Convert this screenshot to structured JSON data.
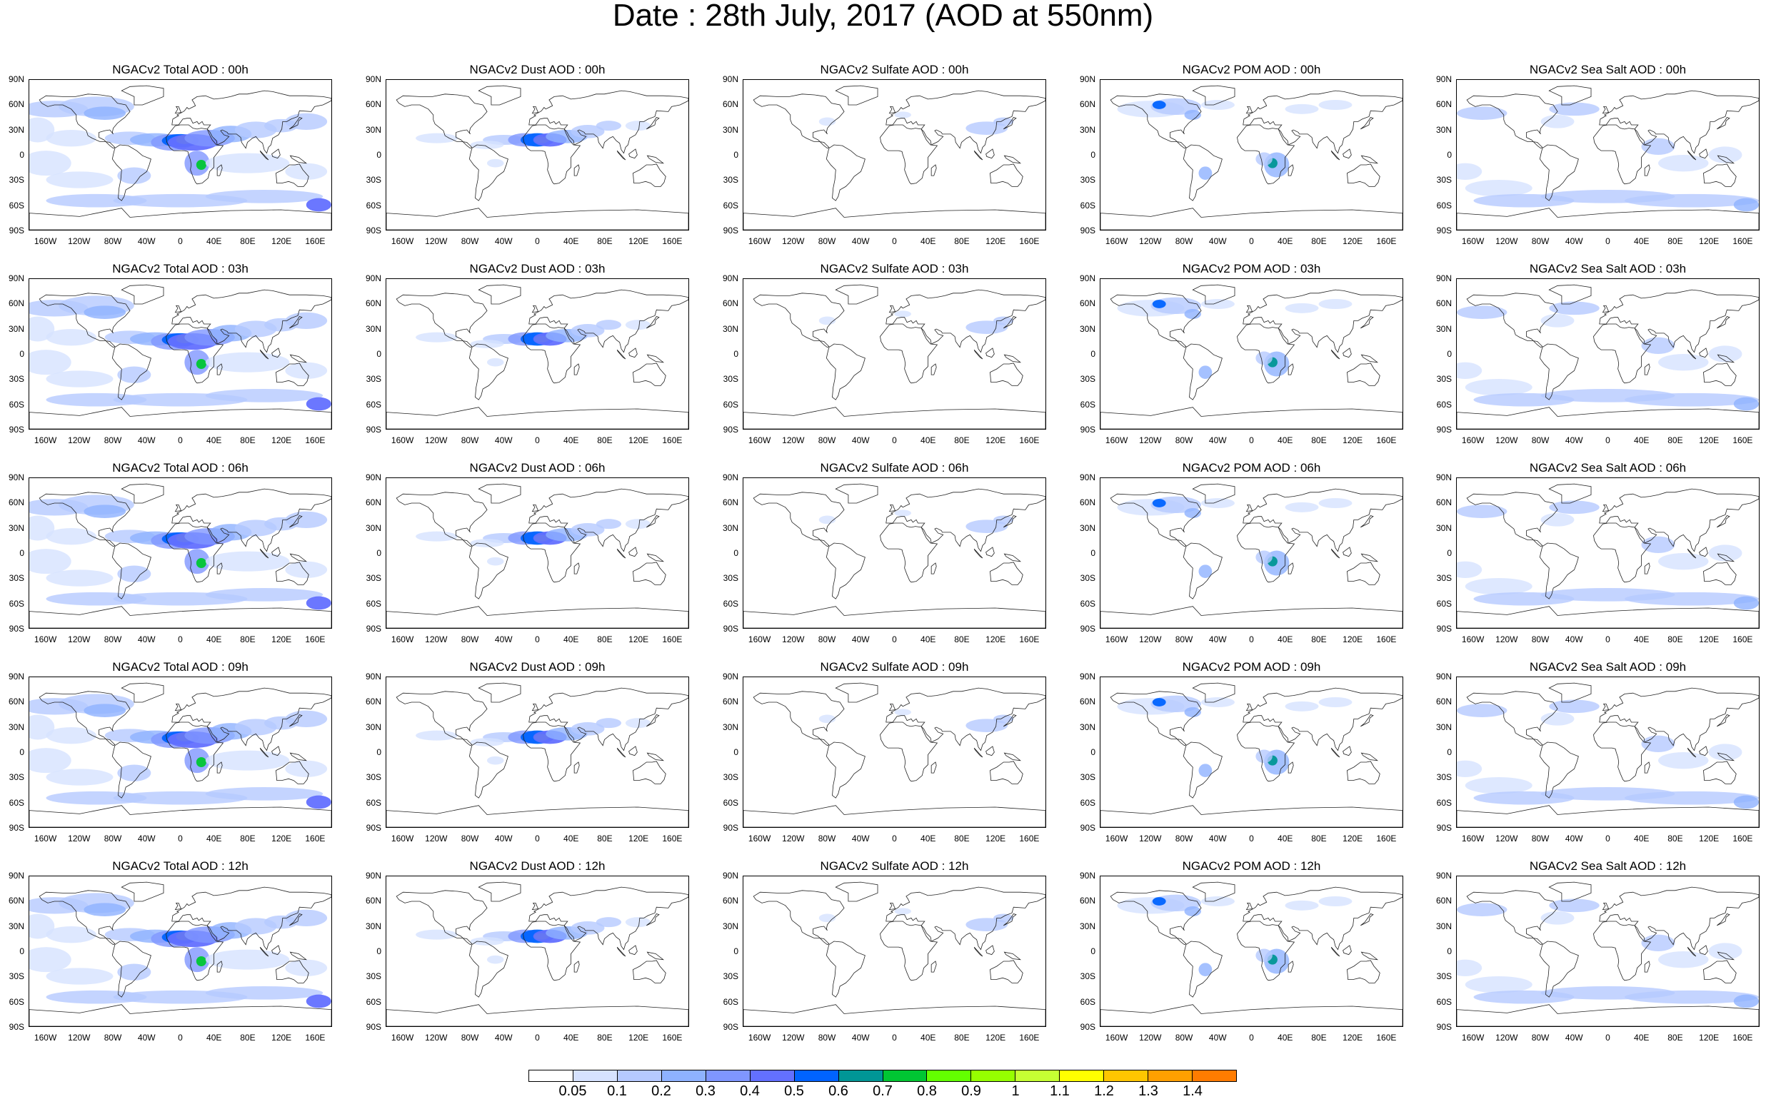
{
  "title": "Date : 28th July, 2017 (AOD at 550nm)",
  "lat_labels": [
    "90N",
    "60N",
    "30N",
    "0",
    "30S",
    "60S",
    "90S"
  ],
  "lon_labels": [
    "160W",
    "120W",
    "80W",
    "40W",
    "0",
    "40E",
    "80E",
    "120E",
    "160E"
  ],
  "lon_label_values": [
    -160,
    -120,
    -80,
    -40,
    0,
    40,
    80,
    120,
    160
  ],
  "species": [
    "total",
    "dust",
    "sulfate",
    "pom",
    "seasalt"
  ],
  "times": [
    "00h",
    "03h",
    "06h",
    "09h",
    "12h"
  ],
  "panels": [
    {
      "species": "total",
      "time": "00h",
      "title": "NGACv2 Total AOD : 00h"
    },
    {
      "species": "dust",
      "time": "00h",
      "title": "NGACv2 Dust AOD : 00h"
    },
    {
      "species": "sulfate",
      "time": "00h",
      "title": "NGACv2 Sulfate AOD : 00h"
    },
    {
      "species": "pom",
      "time": "00h",
      "title": "NGACv2 POM AOD : 00h"
    },
    {
      "species": "seasalt",
      "time": "00h",
      "title": "NGACv2 Sea Salt AOD : 00h"
    },
    {
      "species": "total",
      "time": "03h",
      "title": "NGACv2 Total AOD : 03h"
    },
    {
      "species": "dust",
      "time": "03h",
      "title": "NGACv2 Dust AOD : 03h"
    },
    {
      "species": "sulfate",
      "time": "03h",
      "title": "NGACv2 Sulfate AOD : 03h"
    },
    {
      "species": "pom",
      "time": "03h",
      "title": "NGACv2 POM AOD : 03h"
    },
    {
      "species": "seasalt",
      "time": "03h",
      "title": "NGACv2 Sea Salt AOD : 03h"
    },
    {
      "species": "total",
      "time": "06h",
      "title": "NGACv2 Total AOD : 06h"
    },
    {
      "species": "dust",
      "time": "06h",
      "title": "NGACv2 Dust AOD : 06h"
    },
    {
      "species": "sulfate",
      "time": "06h",
      "title": "NGACv2 Sulfate AOD : 06h"
    },
    {
      "species": "pom",
      "time": "06h",
      "title": "NGACv2 POM AOD : 06h"
    },
    {
      "species": "seasalt",
      "time": "06h",
      "title": "NGACv2 Sea Salt AOD : 06h"
    },
    {
      "species": "total",
      "time": "09h",
      "title": "NGACv2 Total AOD : 09h"
    },
    {
      "species": "dust",
      "time": "09h",
      "title": "NGACv2 Dust AOD : 09h"
    },
    {
      "species": "sulfate",
      "time": "09h",
      "title": "NGACv2 Sulfate AOD : 09h"
    },
    {
      "species": "pom",
      "time": "09h",
      "title": "NGACv2 POM AOD : 09h"
    },
    {
      "species": "seasalt",
      "time": "09h",
      "title": "NGACv2 Sea Salt  AOD : 09h"
    },
    {
      "species": "total",
      "time": "12h",
      "title": "NGACv2 Total AOD  : 12h"
    },
    {
      "species": "dust",
      "time": "12h",
      "title": "NGACv2 Dust AOD : 12h"
    },
    {
      "species": "sulfate",
      "time": "12h",
      "title": "NGACv2 Sulfate AOD : 12h"
    },
    {
      "species": "pom",
      "time": "12h",
      "title": "NGACv2 POM  AOD : 12h"
    },
    {
      "species": "seasalt",
      "time": "12h",
      "title": "NGACv2 Sea Salt  AOD : 12h"
    }
  ],
  "colorbar": {
    "colors": [
      "#ffffff",
      "#d6e2ff",
      "#b5c9ff",
      "#8eb2ff",
      "#7f96ff",
      "#6370ff",
      "#0063ff",
      "#009696",
      "#00c633",
      "#63ff00",
      "#96ff00",
      "#c6ff33",
      "#ffff00",
      "#ffc600",
      "#ffa000",
      "#ff7c00",
      "#ff1900"
    ],
    "tick_labels": [
      "0.05",
      "0.1",
      "0.2",
      "0.3",
      "0.4",
      "0.5",
      "0.6",
      "0.7",
      "0.8",
      "0.9",
      "1",
      "1.1",
      "1.2",
      "1.3",
      "1.4"
    ]
  }
}
